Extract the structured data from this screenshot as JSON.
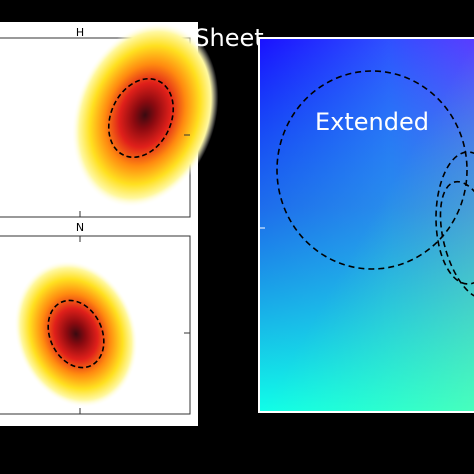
{
  "header": {
    "title": "Sheet"
  },
  "panels": [
    {
      "label": "H"
    },
    {
      "label": "N"
    }
  ],
  "region": {
    "label": "Extended"
  }
}
